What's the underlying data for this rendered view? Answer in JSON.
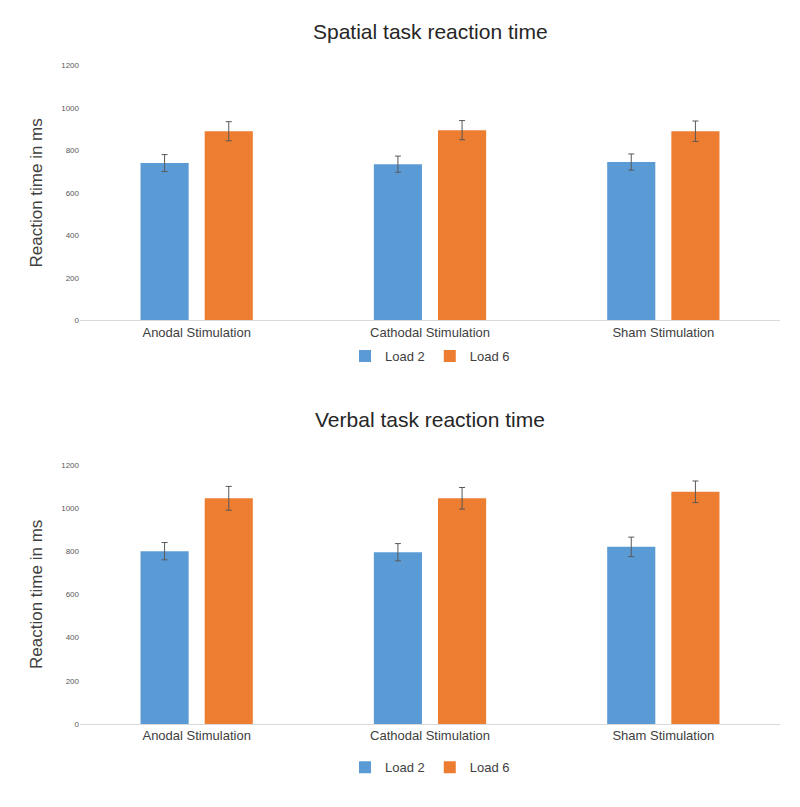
{
  "chart_data": [
    {
      "type": "bar",
      "title": "Spatial task reaction time",
      "y_label": "Reaction time in ms",
      "categories": [
        "Anodal Stimulation",
        "Cathodal Stimulation",
        "Sham Stimulation"
      ],
      "series": [
        {
          "name": "Load 2",
          "color": "#5b9bd5",
          "values": [
            740,
            735,
            745
          ],
          "errors": [
            40,
            38,
            38
          ]
        },
        {
          "name": "Load 6",
          "color": "#ed7d31",
          "values": [
            890,
            895,
            890
          ],
          "errors": [
            45,
            45,
            48
          ]
        }
      ],
      "ylim": [
        0,
        1200
      ],
      "yticks": [
        0,
        200,
        400,
        600,
        800,
        1000,
        1200
      ],
      "grid": false,
      "legend": "bottom"
    },
    {
      "type": "bar",
      "title": "Verbal task reaction time",
      "y_label": "Reaction time in ms",
      "categories": [
        "Anodal Stimulation",
        "Cathodal Stimulation",
        "Sham Stimulation"
      ],
      "series": [
        {
          "name": "Load 2",
          "color": "#5b9bd5",
          "values": [
            800,
            795,
            820
          ],
          "errors": [
            40,
            40,
            45
          ]
        },
        {
          "name": "Load 6",
          "color": "#ed7d31",
          "values": [
            1045,
            1045,
            1075
          ],
          "errors": [
            55,
            50,
            50
          ]
        }
      ],
      "ylim": [
        0,
        1200
      ],
      "yticks": [
        0,
        200,
        400,
        600,
        800,
        1000,
        1200
      ],
      "grid": false,
      "legend": "bottom"
    }
  ]
}
